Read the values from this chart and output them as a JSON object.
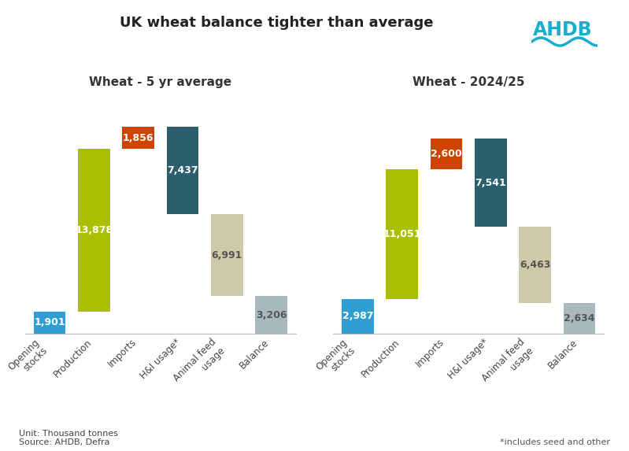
{
  "title": "UK wheat balance tighter than average",
  "subtitle_left": "Wheat - 5 yr average",
  "subtitle_right": "Wheat - 2024/25",
  "avg": {
    "opening_stocks": 1901,
    "production": 13878,
    "imports": 1856,
    "hi_usage": 7437,
    "animal_feed": 6991,
    "balance": 3206
  },
  "current": {
    "opening_stocks": 2987,
    "production": 11051,
    "imports": 2600,
    "hi_usage": 7541,
    "animal_feed": 6463,
    "balance": 2634
  },
  "colors": {
    "opening_stocks": "#2E9FD0",
    "production": "#AABF00",
    "imports": "#CC4400",
    "hi_usage": "#2B5F6E",
    "animal_feed": "#CEC9A8",
    "balance": "#A8B8BF"
  },
  "xlabels": [
    "Opening\nstocks",
    "Production",
    "Imports",
    "H&I usage*",
    "Animal feed\nusage",
    "Balance"
  ],
  "ylim": 20000,
  "bar_width": 0.72,
  "footnote_left": "Unit: Thousand tonnes\nSource: AHDB, Defra",
  "footnote_right": "*includes seed and other",
  "ahdb_text": "AHDB",
  "ahdb_color": "#1AADCE",
  "wave_color": "#1AADCE"
}
